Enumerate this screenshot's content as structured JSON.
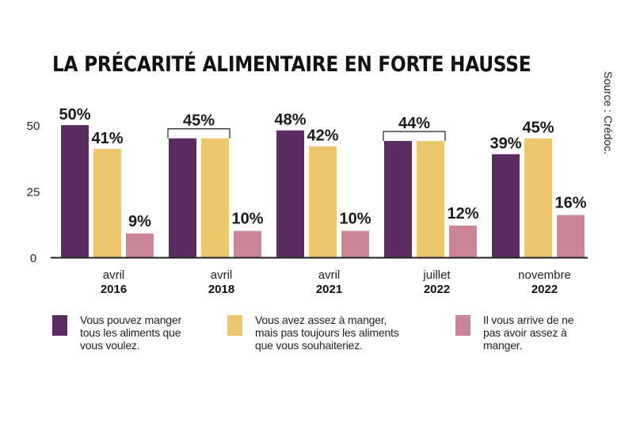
{
  "chart_data": {
    "type": "bar",
    "title": "LA PRÉCARITÉ ALIMENTAIRE EN FORTE HAUSSE",
    "source": "Source : Crédoc.",
    "categories": [
      {
        "line1": "avril",
        "line2": "2016"
      },
      {
        "line1": "avril",
        "line2": "2018"
      },
      {
        "line1": "avril",
        "line2": "2021"
      },
      {
        "line1": "juillet",
        "line2": "2022"
      },
      {
        "line1": "novembre",
        "line2": "2022"
      }
    ],
    "series": [
      {
        "name": "Vous pouvez manger tous les aliments que vous voulez.",
        "color": "#5c2d62",
        "values": [
          50,
          45,
          48,
          44,
          39
        ]
      },
      {
        "name": "Vous avez assez à manger, mais pas toujours les aliments que vous souhaiteriez.",
        "color": "#ecc76f",
        "values": [
          41,
          45,
          42,
          44,
          45
        ]
      },
      {
        "name": "Il vous arrive de ne pas avoir assez à manger.",
        "color": "#c98495",
        "values": [
          9,
          10,
          10,
          12,
          16
        ]
      }
    ],
    "data_labels": [
      [
        {
          "text": "50%"
        },
        {
          "text": "41%"
        },
        {
          "text": "9%"
        }
      ],
      [
        {
          "text": "45%",
          "shared": true
        },
        {
          "text": "10%"
        }
      ],
      [
        {
          "text": "48%"
        },
        {
          "text": "42%"
        },
        {
          "text": "10%"
        }
      ],
      [
        {
          "text": "44%",
          "shared": true
        },
        {
          "text": "12%"
        }
      ],
      [
        {
          "text": "39%"
        },
        {
          "text": "45%"
        },
        {
          "text": "16%"
        }
      ]
    ],
    "yticks": [
      0,
      25,
      50
    ],
    "ylim": [
      0,
      50
    ],
    "legend": [
      {
        "lines": [
          "Vous pouvez manger",
          "tous les aliments que",
          "vous voulez."
        ],
        "color": "#5c2d62"
      },
      {
        "lines": [
          "Vous avez assez à manger,",
          "mais pas toujours les aliments",
          "que vous souhaiteriez."
        ],
        "color": "#ecc76f"
      },
      {
        "lines": [
          "Il vous arrive de ne",
          "pas avoir assez à",
          "manger."
        ],
        "color": "#c98495"
      }
    ]
  }
}
